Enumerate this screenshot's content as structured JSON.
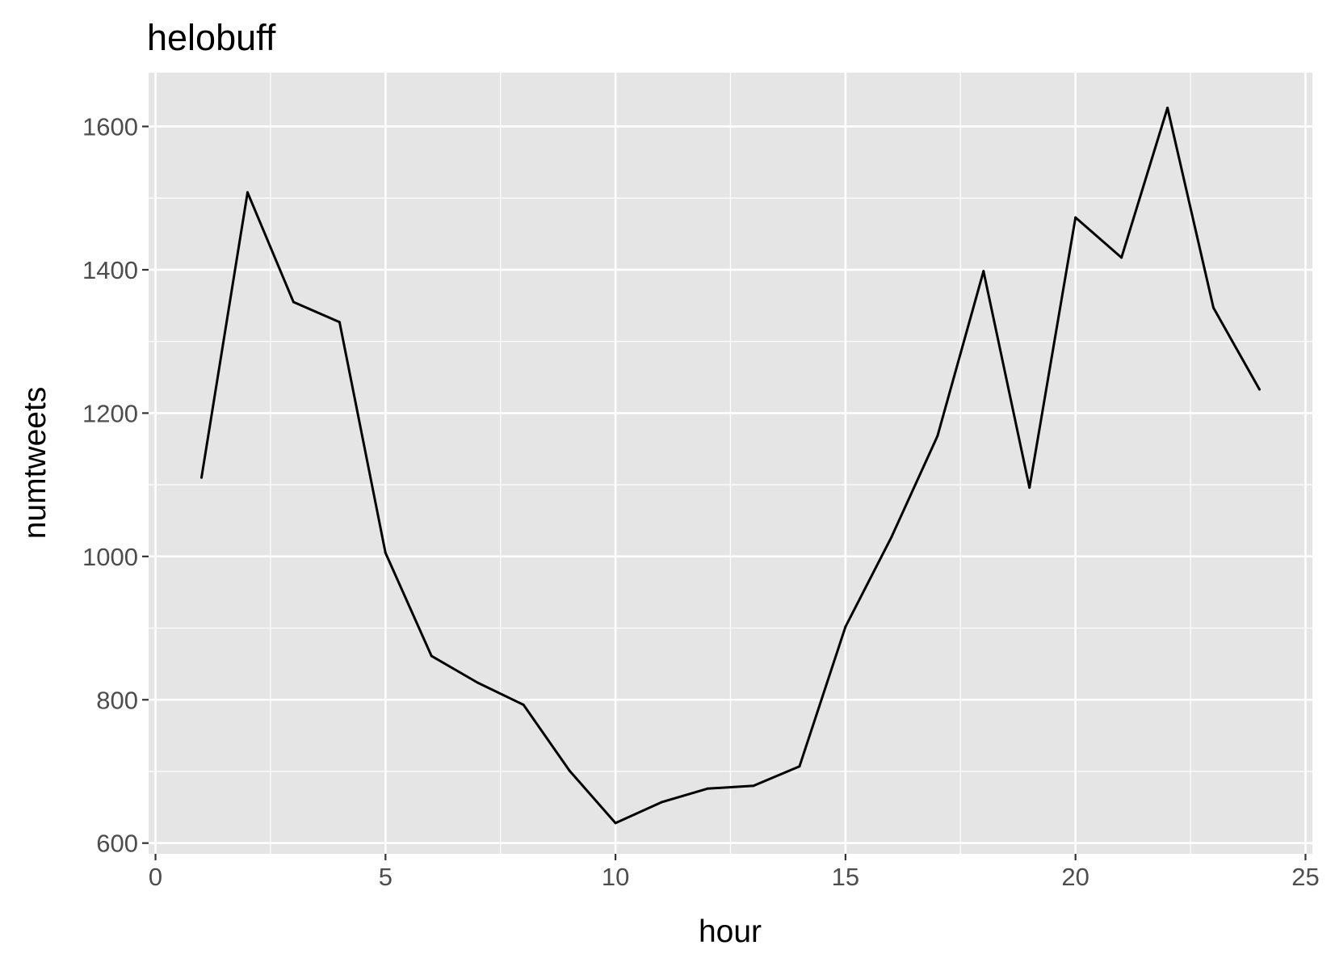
{
  "chart_data": {
    "type": "line",
    "title": "helobuff",
    "xlabel": "hour",
    "ylabel": "numtweets",
    "xlim": [
      -0.15,
      25.15
    ],
    "ylim": [
      585,
      1675
    ],
    "x_ticks": [
      0,
      5,
      10,
      15,
      20,
      25
    ],
    "y_ticks": [
      600,
      800,
      1000,
      1200,
      1400,
      1600
    ],
    "x_minor": [
      2.5,
      7.5,
      12.5,
      17.5,
      22.5
    ],
    "y_minor": [
      700,
      900,
      1100,
      1300,
      1500
    ],
    "grid": true,
    "panel_background": "#e5e5e5",
    "grid_color": "#ffffff",
    "line_color": "#000000",
    "series": [
      {
        "x": [
          1,
          2,
          3,
          4,
          5,
          6,
          7,
          8,
          9,
          10,
          11,
          12,
          13,
          14,
          15,
          16,
          17,
          18,
          19,
          20,
          21,
          22,
          23,
          24
        ],
        "y": [
          1110,
          1508,
          1355,
          1327,
          1005,
          861,
          824,
          793,
          701,
          628,
          657,
          676,
          680,
          707,
          902,
          1027,
          1168,
          1398,
          1096,
          1473,
          1417,
          1626,
          1347,
          1233
        ]
      }
    ]
  }
}
